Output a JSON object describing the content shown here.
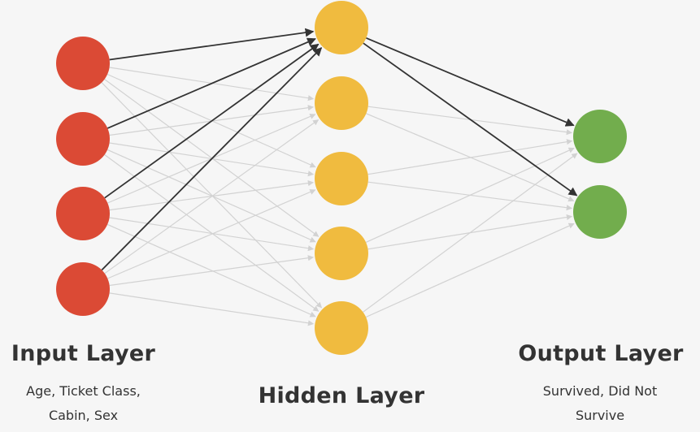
{
  "layers": {
    "input": {
      "title": "Input Layer",
      "subtitle_line1": "Age, Ticket Class,",
      "subtitle_line2": "Cabin, Sex",
      "node_count": 4,
      "color": "#db4a35"
    },
    "hidden": {
      "title": "Hidden Layer",
      "node_count": 5,
      "color": "#f0bb3f"
    },
    "output": {
      "title": "Output Layer",
      "subtitle_line1": "Survived, Did Not",
      "subtitle_line2": "Survive",
      "node_count": 2,
      "color": "#72ad4d"
    }
  },
  "highlighted_connections": {
    "color": "#333333",
    "input_to_hidden": [
      [
        0,
        0
      ],
      [
        1,
        0
      ],
      [
        2,
        0
      ],
      [
        3,
        0
      ]
    ],
    "hidden_to_output": [
      [
        0,
        0
      ],
      [
        0,
        1
      ]
    ]
  },
  "faint_connection_color": "#d2d2d2"
}
